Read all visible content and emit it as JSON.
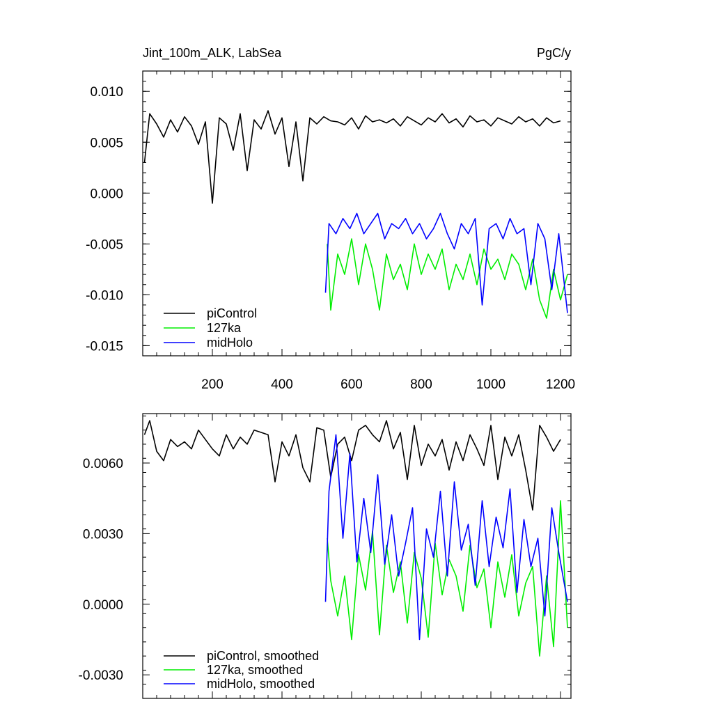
{
  "chart_data": [
    {
      "type": "line",
      "title_left": "Jint_100m_ALK, LabSea",
      "title_right": "PgC/y",
      "xlim": [
        0,
        1230
      ],
      "ylim": [
        -0.016,
        0.012
      ],
      "xticks": [
        200,
        400,
        600,
        800,
        1000,
        1200
      ],
      "xtick_labels": [
        "200",
        "400",
        "600",
        "800",
        "1000",
        "1200"
      ],
      "yticks": [
        -0.015,
        -0.01,
        -0.005,
        0.0,
        0.005,
        0.01
      ],
      "ytick_labels": [
        "-0.015",
        "-0.010",
        "-0.005",
        "0.000",
        "0.005",
        "0.010"
      ],
      "legend_placement": "bottom-left",
      "series": [
        {
          "name": "piControl",
          "color": "#000000",
          "x": [
            5,
            20,
            40,
            60,
            80,
            100,
            120,
            140,
            160,
            180,
            200,
            220,
            240,
            260,
            280,
            300,
            320,
            340,
            360,
            380,
            400,
            420,
            440,
            460,
            480,
            500,
            520,
            540,
            560,
            580,
            600,
            620,
            640,
            660,
            680,
            700,
            720,
            740,
            760,
            780,
            800,
            820,
            840,
            860,
            880,
            900,
            920,
            940,
            960,
            980,
            1000,
            1020,
            1040,
            1060,
            1080,
            1100,
            1120,
            1140,
            1160,
            1180,
            1200
          ],
          "values": [
            0.003,
            0.0078,
            0.0068,
            0.0055,
            0.0072,
            0.006,
            0.0075,
            0.0066,
            0.0048,
            0.007,
            -0.001,
            0.0074,
            0.0068,
            0.0042,
            0.0078,
            0.0022,
            0.0072,
            0.0063,
            0.0081,
            0.0058,
            0.0074,
            0.0026,
            0.007,
            0.0012,
            0.0074,
            0.0068,
            0.0075,
            0.0071,
            0.007,
            0.0067,
            0.0074,
            0.0063,
            0.0076,
            0.007,
            0.0072,
            0.0069,
            0.0073,
            0.0066,
            0.0075,
            0.0071,
            0.0067,
            0.0074,
            0.007,
            0.0078,
            0.0069,
            0.0073,
            0.0065,
            0.0076,
            0.007,
            0.0072,
            0.0066,
            0.0074,
            0.0071,
            0.0068,
            0.0075,
            0.007,
            0.0073,
            0.0066,
            0.0074,
            0.0069,
            0.0071
          ]
        },
        {
          "name": "127ka",
          "color": "#00ee00",
          "x": [
            530,
            540,
            560,
            580,
            600,
            620,
            640,
            660,
            680,
            700,
            720,
            740,
            760,
            780,
            800,
            820,
            840,
            860,
            880,
            900,
            920,
            940,
            960,
            980,
            1000,
            1020,
            1040,
            1060,
            1080,
            1100,
            1120,
            1140,
            1160,
            1180,
            1200,
            1220
          ],
          "values": [
            -0.005,
            -0.0115,
            -0.006,
            -0.008,
            -0.0045,
            -0.009,
            -0.005,
            -0.0075,
            -0.0115,
            -0.006,
            -0.0085,
            -0.007,
            -0.0095,
            -0.005,
            -0.008,
            -0.006,
            -0.0075,
            -0.0055,
            -0.0095,
            -0.007,
            -0.0085,
            -0.006,
            -0.009,
            -0.0055,
            -0.0075,
            -0.0065,
            -0.0085,
            -0.006,
            -0.007,
            -0.0095,
            -0.0065,
            -0.0105,
            -0.0123,
            -0.0075,
            -0.0105,
            -0.008
          ]
        },
        {
          "name": "midHolo",
          "color": "#0000ff",
          "x": [
            525,
            535,
            555,
            575,
            595,
            615,
            635,
            655,
            675,
            695,
            715,
            735,
            755,
            775,
            795,
            815,
            835,
            855,
            875,
            895,
            915,
            935,
            955,
            975,
            995,
            1015,
            1035,
            1055,
            1075,
            1095,
            1115,
            1135,
            1155,
            1175,
            1195,
            1220
          ],
          "values": [
            -0.0098,
            -0.003,
            -0.004,
            -0.0025,
            -0.0035,
            -0.002,
            -0.004,
            -0.003,
            -0.002,
            -0.0045,
            -0.003,
            -0.0035,
            -0.0025,
            -0.004,
            -0.003,
            -0.0045,
            -0.0035,
            -0.002,
            -0.004,
            -0.0055,
            -0.003,
            -0.004,
            -0.0025,
            -0.011,
            -0.0035,
            -0.003,
            -0.0045,
            -0.0025,
            -0.004,
            -0.0035,
            -0.009,
            -0.003,
            -0.0045,
            -0.0095,
            -0.004,
            -0.0118
          ]
        }
      ]
    },
    {
      "type": "line",
      "xlim": [
        0,
        1230
      ],
      "ylim": [
        -0.004,
        0.0081
      ],
      "xticks": [
        200,
        400,
        600,
        800,
        1000,
        1200
      ],
      "yticks": [
        -0.003,
        0.0,
        0.003,
        0.006
      ],
      "ytick_labels": [
        "-0.0030",
        "0.0000",
        "0.0030",
        "0.0060"
      ],
      "legend_placement": "bottom-left",
      "series": [
        {
          "name": "piControl, smoothed",
          "color": "#000000",
          "x": [
            5,
            20,
            40,
            60,
            80,
            100,
            120,
            140,
            160,
            180,
            200,
            220,
            240,
            260,
            280,
            300,
            320,
            340,
            360,
            380,
            400,
            420,
            440,
            460,
            480,
            500,
            520,
            540,
            560,
            580,
            600,
            620,
            640,
            660,
            680,
            700,
            720,
            740,
            760,
            780,
            800,
            820,
            840,
            860,
            880,
            900,
            920,
            940,
            960,
            980,
            1000,
            1020,
            1040,
            1060,
            1080,
            1100,
            1120,
            1140,
            1160,
            1180,
            1200
          ],
          "values": [
            0.0072,
            0.0078,
            0.0065,
            0.0061,
            0.007,
            0.0067,
            0.0069,
            0.0066,
            0.0074,
            0.007,
            0.0066,
            0.0063,
            0.0072,
            0.0066,
            0.0071,
            0.0068,
            0.0074,
            0.0073,
            0.0072,
            0.0052,
            0.0069,
            0.0063,
            0.0072,
            0.0058,
            0.0052,
            0.0075,
            0.0074,
            0.0054,
            0.0068,
            0.0071,
            0.0061,
            0.0074,
            0.0076,
            0.0072,
            0.0069,
            0.0078,
            0.0066,
            0.0073,
            0.0053,
            0.0076,
            0.0059,
            0.0068,
            0.0063,
            0.007,
            0.0057,
            0.0069,
            0.0061,
            0.0072,
            0.0066,
            0.0059,
            0.0076,
            0.0053,
            0.0071,
            0.0063,
            0.0072,
            0.0057,
            0.004,
            0.0076,
            0.0071,
            0.0065,
            0.007
          ]
        },
        {
          "name": "127ka, smoothed",
          "color": "#00ee00",
          "x": [
            530,
            540,
            560,
            580,
            600,
            620,
            640,
            660,
            680,
            700,
            720,
            740,
            760,
            780,
            800,
            820,
            840,
            860,
            880,
            900,
            920,
            940,
            960,
            980,
            1000,
            1020,
            1040,
            1060,
            1080,
            1100,
            1120,
            1140,
            1160,
            1180,
            1200,
            1220
          ],
          "values": [
            0.0028,
            0.001,
            -0.0005,
            0.0012,
            -0.0015,
            0.0021,
            0.0006,
            0.0031,
            -0.0013,
            0.0025,
            0.0005,
            0.0018,
            -0.0008,
            0.0022,
            0.0011,
            -0.0014,
            0.0026,
            0.0004,
            0.0019,
            0.0012,
            -0.0003,
            0.0025,
            0.0007,
            0.0015,
            -0.001,
            0.0018,
            0.0003,
            0.0021,
            -0.0005,
            0.0009,
            0.0016,
            -0.0022,
            0.0012,
            -0.0018,
            0.0044,
            -0.001
          ]
        },
        {
          "name": "midHolo, smoothed",
          "color": "#0000ff",
          "x": [
            525,
            535,
            555,
            575,
            595,
            615,
            635,
            655,
            675,
            695,
            715,
            735,
            755,
            775,
            795,
            815,
            835,
            855,
            875,
            895,
            915,
            935,
            955,
            975,
            995,
            1015,
            1035,
            1055,
            1075,
            1095,
            1115,
            1135,
            1155,
            1175,
            1195,
            1220
          ],
          "values": [
            0.0001,
            0.0048,
            0.0072,
            0.0028,
            0.0064,
            0.0018,
            0.0045,
            0.0022,
            0.0055,
            0.0017,
            0.0038,
            0.0012,
            0.0026,
            0.0041,
            -0.0015,
            0.0032,
            0.002,
            0.0048,
            0.0012,
            0.0052,
            0.0023,
            0.0034,
            0.0008,
            0.0044,
            0.0016,
            0.0037,
            0.0024,
            0.0049,
            0.0005,
            0.0036,
            0.0016,
            0.0028,
            -0.0005,
            0.0041,
            0.0022,
            0.0001
          ]
        }
      ]
    }
  ]
}
